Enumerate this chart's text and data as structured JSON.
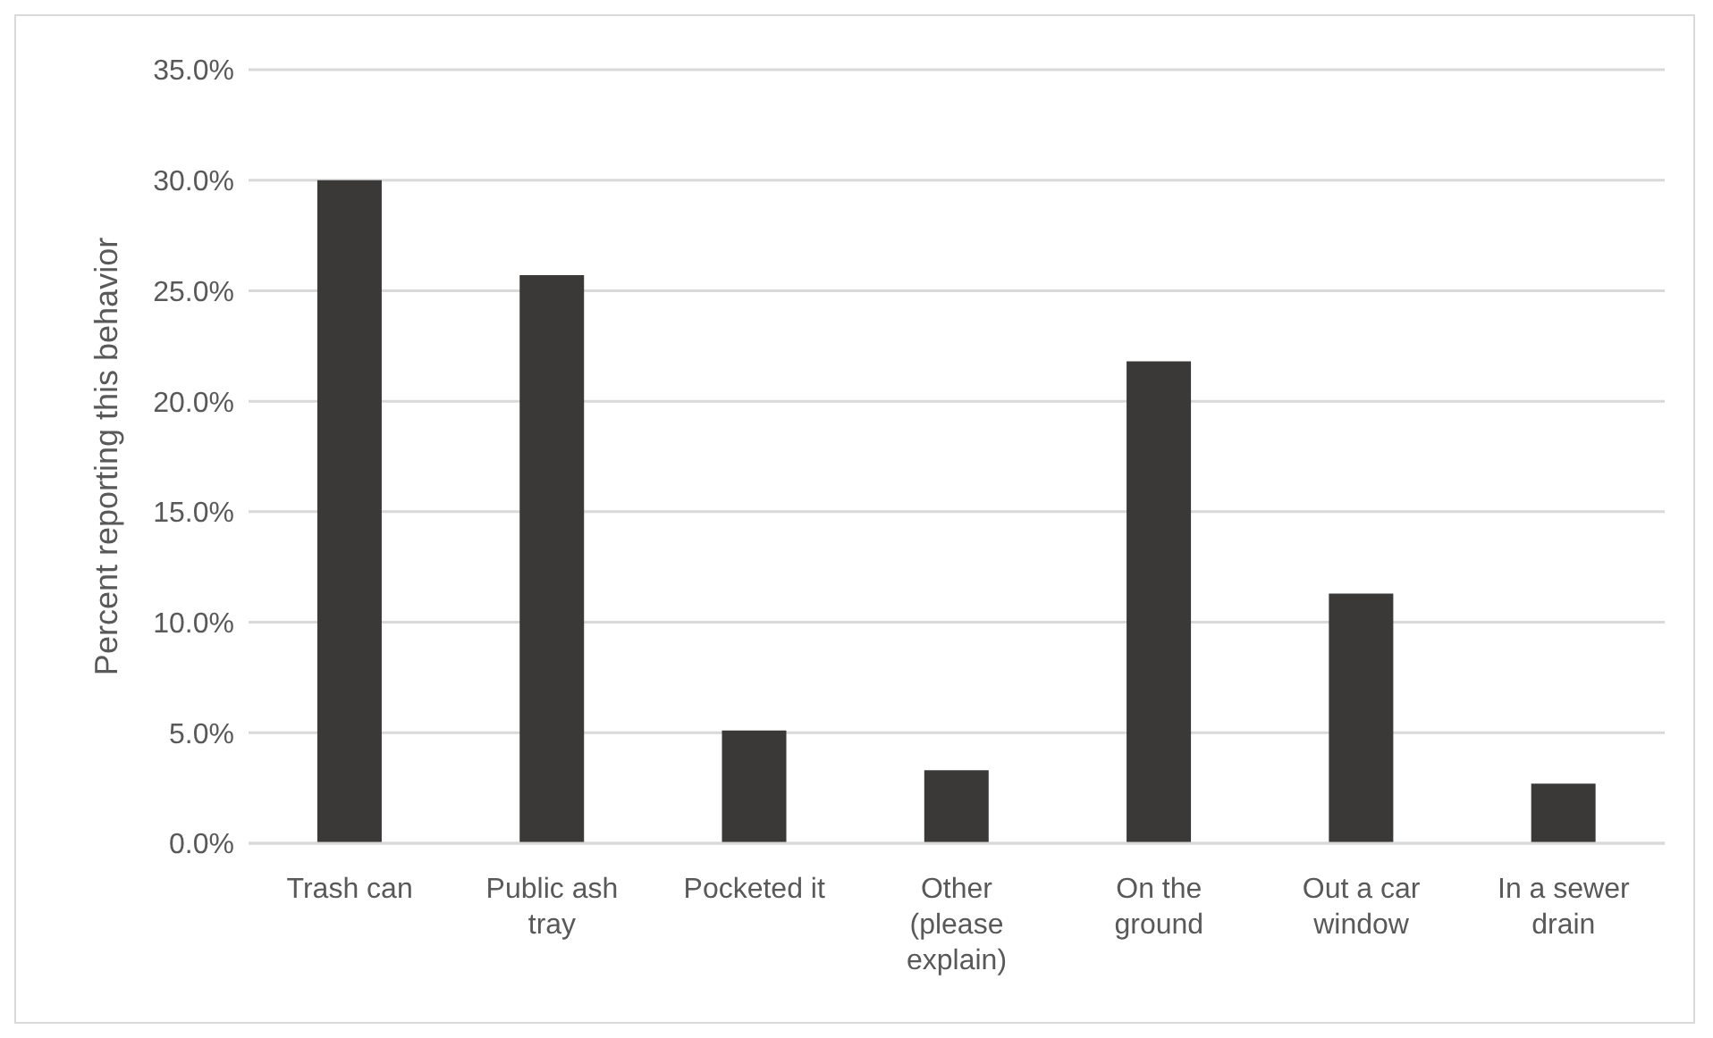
{
  "chart_data": {
    "type": "bar",
    "ylabel": "Percent reporting this behavior",
    "categories": [
      "Trash can",
      "Public ash tray",
      "Pocketed it",
      "Other (please explain)",
      "On the ground",
      "Out a car window",
      "In a sewer drain"
    ],
    "values": [
      30.0,
      25.7,
      5.1,
      3.3,
      21.8,
      11.3,
      2.7
    ],
    "color": "#3a3937",
    "ylim": [
      0,
      35
    ],
    "yticks": [
      {
        "value": 0,
        "label": "0.0%"
      },
      {
        "value": 5,
        "label": "5.0%"
      },
      {
        "value": 10,
        "label": "10.0%"
      },
      {
        "value": 15,
        "label": "15.0%"
      },
      {
        "value": 20,
        "label": "20.0%"
      },
      {
        "value": 25,
        "label": "25.0%"
      },
      {
        "value": 30,
        "label": "30.0%"
      },
      {
        "value": 35,
        "label": "35.0%"
      }
    ],
    "grid": "y",
    "legend": false
  }
}
